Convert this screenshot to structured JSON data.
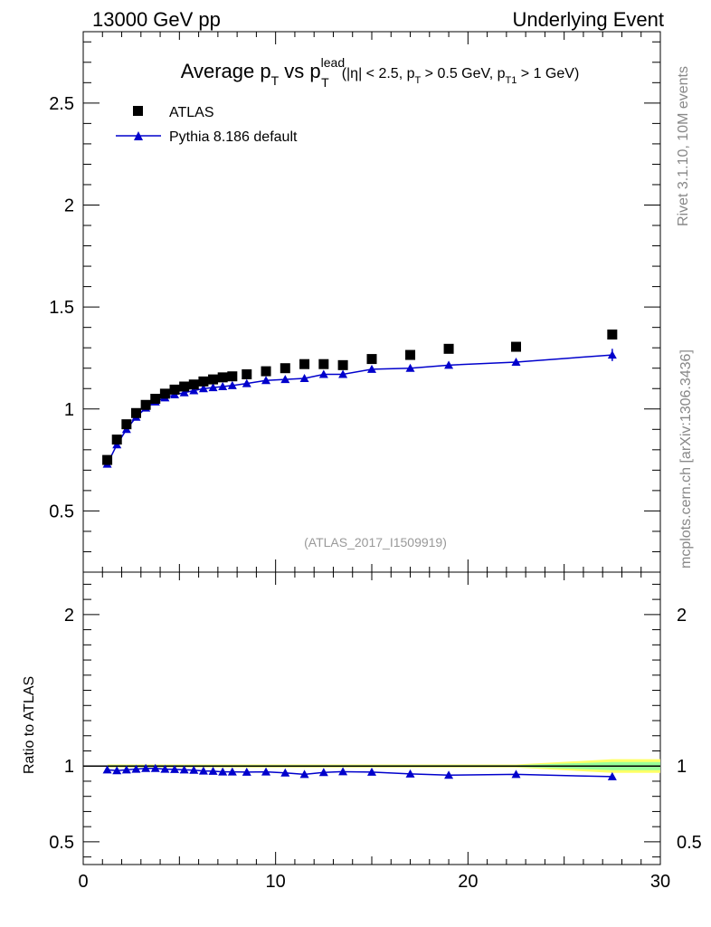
{
  "header": {
    "left": "13000 GeV pp",
    "right": "Underlying Event"
  },
  "title": {
    "main": "Average p",
    "main_sub": "T",
    "vs": " vs p",
    "vs_sub": "T",
    "vs_sup": "lead",
    "cuts_a": "(|η| < 2.5, p",
    "cuts_a_sub": "T",
    "cuts_b": " > 0.5 GeV, p",
    "cuts_b_sub": "T1",
    "cuts_c": " > 1 GeV)"
  },
  "watermark": "(ATLAS_2017_I1509919)",
  "side_labels": {
    "top": "Rivet 3.1.10,  10M events",
    "bottom": "mcplots.cern.ch [arXiv:1306.3436]"
  },
  "colors": {
    "data": "#000000",
    "mc": "#0000cc",
    "band_outer": "#ffff66",
    "band_inner": "#99ff99"
  },
  "chart_data": [
    {
      "type": "scatter",
      "panel": "main",
      "xlim": [
        0,
        30
      ],
      "ylim": [
        0.2,
        2.85
      ],
      "xticks": [
        0,
        10,
        20,
        30
      ],
      "yticks": [
        {
          "v": 0.5,
          "label": "0.5"
        },
        {
          "v": 1,
          "label": "1"
        },
        {
          "v": 1.5,
          "label": "1.5"
        },
        {
          "v": 2,
          "label": "2"
        },
        {
          "v": 2.5,
          "label": "2.5"
        }
      ],
      "legend_position": "top-left",
      "series": [
        {
          "name": "ATLAS",
          "marker": "square",
          "points": [
            [
              1.25,
              0.75
            ],
            [
              1.75,
              0.85
            ],
            [
              2.25,
              0.925
            ],
            [
              2.75,
              0.98
            ],
            [
              3.25,
              1.02
            ],
            [
              3.75,
              1.05
            ],
            [
              4.25,
              1.075
            ],
            [
              4.75,
              1.095
            ],
            [
              5.25,
              1.11
            ],
            [
              5.75,
              1.12
            ],
            [
              6.25,
              1.135
            ],
            [
              6.75,
              1.145
            ],
            [
              7.25,
              1.155
            ],
            [
              7.75,
              1.16
            ],
            [
              8.5,
              1.17
            ],
            [
              9.5,
              1.185
            ],
            [
              10.5,
              1.2
            ],
            [
              11.5,
              1.22
            ],
            [
              12.5,
              1.22
            ],
            [
              13.5,
              1.215
            ],
            [
              15.0,
              1.245
            ],
            [
              17.0,
              1.265
            ],
            [
              19.0,
              1.295
            ],
            [
              22.5,
              1.305
            ],
            [
              27.5,
              1.365
            ]
          ]
        },
        {
          "name": "Pythia 8.186 default",
          "marker": "triangle",
          "points": [
            [
              1.25,
              0.73
            ],
            [
              1.75,
              0.825
            ],
            [
              2.25,
              0.9
            ],
            [
              2.75,
              0.96
            ],
            [
              3.25,
              1.005
            ],
            [
              3.75,
              1.035
            ],
            [
              4.25,
              1.055
            ],
            [
              4.75,
              1.07
            ],
            [
              5.25,
              1.08
            ],
            [
              5.75,
              1.09
            ],
            [
              6.25,
              1.1
            ],
            [
              6.75,
              1.105
            ],
            [
              7.25,
              1.11
            ],
            [
              7.75,
              1.115
            ],
            [
              8.5,
              1.125
            ],
            [
              9.5,
              1.14
            ],
            [
              10.5,
              1.145
            ],
            [
              11.5,
              1.15
            ],
            [
              12.5,
              1.17
            ],
            [
              13.5,
              1.17
            ],
            [
              15.0,
              1.195
            ],
            [
              17.0,
              1.2
            ],
            [
              19.0,
              1.215
            ],
            [
              22.5,
              1.23
            ],
            [
              27.5,
              1.265
            ]
          ]
        }
      ]
    },
    {
      "type": "line",
      "panel": "ratio",
      "ylabel": "Ratio to ATLAS",
      "xlim": [
        0,
        30
      ],
      "ylim": [
        0.35,
        2.28
      ],
      "xticks": [
        0,
        10,
        20,
        30
      ],
      "yticks": [
        {
          "v": 0.5,
          "label": "0.5"
        },
        {
          "v": 1,
          "label": "1"
        },
        {
          "v": 2,
          "label": "2"
        }
      ],
      "series": [
        {
          "name": "Pythia 8.186 default",
          "points": [
            [
              1.25,
              0.975
            ],
            [
              1.75,
              0.97
            ],
            [
              2.25,
              0.975
            ],
            [
              2.75,
              0.98
            ],
            [
              3.25,
              0.985
            ],
            [
              3.75,
              0.985
            ],
            [
              4.25,
              0.98
            ],
            [
              4.75,
              0.978
            ],
            [
              5.25,
              0.975
            ],
            [
              5.75,
              0.973
            ],
            [
              6.25,
              0.968
            ],
            [
              6.75,
              0.966
            ],
            [
              7.25,
              0.962
            ],
            [
              7.75,
              0.962
            ],
            [
              8.5,
              0.96
            ],
            [
              9.5,
              0.962
            ],
            [
              10.5,
              0.955
            ],
            [
              11.5,
              0.945
            ],
            [
              12.5,
              0.958
            ],
            [
              13.5,
              0.963
            ],
            [
              15.0,
              0.96
            ],
            [
              17.0,
              0.948
            ],
            [
              19.0,
              0.94
            ],
            [
              22.5,
              0.945
            ],
            [
              27.5,
              0.93
            ]
          ]
        }
      ]
    }
  ]
}
